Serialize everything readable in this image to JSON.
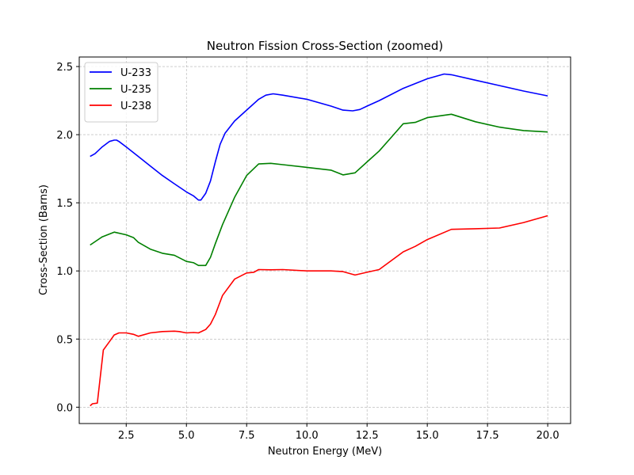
{
  "chart_data": {
    "type": "line",
    "title": "Neutron Fission Cross-Section (zoomed)",
    "xlabel": "Neutron Energy (MeV)",
    "ylabel": "Cross-Section (Barns)",
    "xlim": [
      0.55,
      20.95
    ],
    "ylim": [
      -0.12,
      2.57
    ],
    "xticks": [
      2.5,
      5.0,
      7.5,
      10.0,
      12.5,
      15.0,
      17.5,
      20.0
    ],
    "xtick_labels": [
      "2.5",
      "5.0",
      "7.5",
      "10.0",
      "12.5",
      "15.0",
      "17.5",
      "20.0"
    ],
    "yticks": [
      0.0,
      0.5,
      1.0,
      1.5,
      2.0,
      2.5
    ],
    "ytick_labels": [
      "0.0",
      "0.5",
      "1.0",
      "1.5",
      "2.0",
      "2.5"
    ],
    "grid": true,
    "legend_position": "upper-left",
    "series": [
      {
        "name": "U-233",
        "color": "#0000ff",
        "x": [
          1.0,
          1.2,
          1.5,
          1.8,
          2.0,
          2.1,
          2.2,
          2.5,
          3.0,
          3.5,
          4.0,
          4.5,
          5.0,
          5.3,
          5.5,
          5.6,
          5.8,
          6.0,
          6.2,
          6.4,
          6.6,
          7.0,
          7.5,
          8.0,
          8.3,
          8.6,
          9.0,
          10.0,
          11.0,
          11.5,
          11.9,
          12.2,
          12.5,
          13.0,
          14.0,
          15.0,
          15.7,
          16.0,
          17.0,
          18.0,
          19.0,
          20.0
        ],
        "y": [
          1.84,
          1.86,
          1.91,
          1.95,
          1.96,
          1.96,
          1.95,
          1.91,
          1.84,
          1.77,
          1.7,
          1.64,
          1.58,
          1.55,
          1.52,
          1.52,
          1.57,
          1.66,
          1.8,
          1.93,
          2.01,
          2.1,
          2.18,
          2.26,
          2.29,
          2.3,
          2.29,
          2.26,
          2.21,
          2.18,
          2.175,
          2.185,
          2.21,
          2.25,
          2.34,
          2.41,
          2.445,
          2.44,
          2.4,
          2.36,
          2.32,
          2.285
        ]
      },
      {
        "name": "U-235",
        "color": "#008000",
        "x": [
          1.0,
          1.5,
          2.0,
          2.5,
          2.8,
          3.0,
          3.5,
          4.0,
          4.5,
          5.0,
          5.3,
          5.5,
          5.8,
          6.0,
          6.2,
          6.5,
          7.0,
          7.5,
          8.0,
          8.5,
          9.0,
          10.0,
          11.0,
          11.5,
          12.0,
          12.5,
          13.0,
          13.5,
          14.0,
          14.5,
          15.0,
          16.0,
          17.0,
          18.0,
          19.0,
          20.0
        ],
        "y": [
          1.19,
          1.25,
          1.285,
          1.265,
          1.245,
          1.21,
          1.16,
          1.13,
          1.115,
          1.07,
          1.06,
          1.04,
          1.04,
          1.1,
          1.2,
          1.34,
          1.54,
          1.7,
          1.785,
          1.79,
          1.78,
          1.76,
          1.74,
          1.705,
          1.72,
          1.8,
          1.88,
          1.98,
          2.08,
          2.09,
          2.125,
          2.15,
          2.095,
          2.055,
          2.03,
          2.02
        ]
      },
      {
        "name": "U-238",
        "color": "#ff0000",
        "x": [
          1.0,
          1.1,
          1.3,
          1.55,
          1.8,
          2.0,
          2.2,
          2.5,
          2.8,
          3.0,
          3.5,
          4.0,
          4.5,
          4.7,
          5.0,
          5.3,
          5.5,
          5.8,
          6.0,
          6.2,
          6.5,
          7.0,
          7.5,
          7.8,
          8.0,
          8.5,
          9.0,
          10.0,
          11.0,
          11.5,
          12.0,
          12.5,
          13.0,
          14.0,
          14.5,
          15.0,
          16.0,
          17.0,
          18.0,
          19.0,
          20.0
        ],
        "y": [
          0.01,
          0.025,
          0.03,
          0.42,
          0.48,
          0.53,
          0.545,
          0.545,
          0.535,
          0.52,
          0.545,
          0.555,
          0.558,
          0.555,
          0.545,
          0.548,
          0.545,
          0.57,
          0.61,
          0.68,
          0.82,
          0.94,
          0.985,
          0.99,
          1.01,
          1.008,
          1.01,
          1.0,
          1.0,
          0.995,
          0.97,
          0.99,
          1.01,
          1.14,
          1.18,
          1.23,
          1.305,
          1.31,
          1.315,
          1.355,
          1.405
        ]
      }
    ]
  }
}
